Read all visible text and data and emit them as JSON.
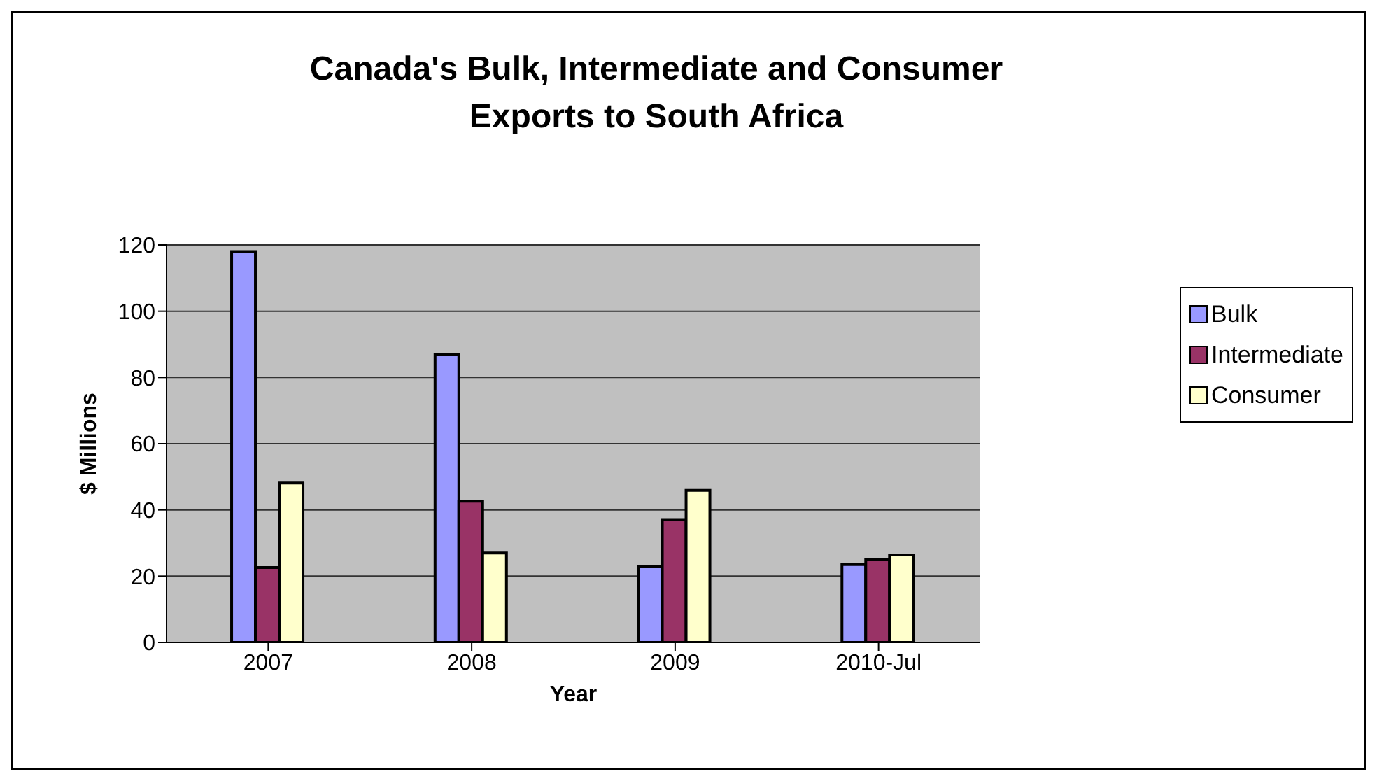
{
  "chart_data": {
    "type": "bar",
    "title": "Canada's Bulk, Intermediate and Consumer Exports to South Africa",
    "xlabel": "Year",
    "ylabel": "$ Millions",
    "categories": [
      "2007",
      "2008",
      "2009",
      "2010-Jul"
    ],
    "series": [
      {
        "name": "Bulk",
        "color": "#9999ff",
        "values": [
          118,
          87,
          22.9,
          23.5
        ]
      },
      {
        "name": "Intermediate",
        "color": "#993366",
        "values": [
          22.6,
          42.6,
          37.1,
          25.1
        ]
      },
      {
        "name": "Consumer",
        "color": "#ffffcc",
        "values": [
          48.1,
          27,
          45.9,
          26.4
        ]
      }
    ],
    "ylim": [
      0,
      120
    ],
    "yticks": [
      0,
      20,
      40,
      60,
      80,
      100,
      120
    ],
    "grid": "y",
    "legend": "right"
  }
}
